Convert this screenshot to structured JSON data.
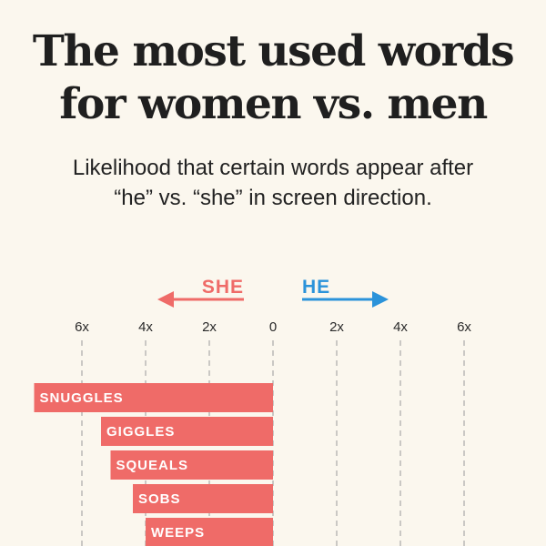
{
  "header": {
    "title_line1": "The most used words",
    "title_line2": "for women vs. men",
    "subtitle_line1": "Likelihood that certain words appear after",
    "subtitle_line2": "“he” vs. “she” in screen direction."
  },
  "colors": {
    "she": "#ef6b68",
    "he": "#2b93da",
    "grid": "#9a9a9a",
    "background": "#fbf7ee"
  },
  "chart_data": {
    "type": "bar",
    "orientation": "horizontal-diverging",
    "direction_labels": {
      "she": "SHE",
      "he": "HE"
    },
    "tick_values": [
      -6,
      -4,
      -2,
      0,
      2,
      4,
      6
    ],
    "tick_labels": [
      "6x",
      "4x",
      "2x",
      "0",
      "2x",
      "4x",
      "6x"
    ],
    "xlim": [
      -6,
      6
    ],
    "grid": true,
    "categories": [
      "SNUGGLES",
      "GIGGLES",
      "SQUEALS",
      "SOBS",
      "WEEPS"
    ],
    "series": [
      {
        "side": "she",
        "values": [
          7.5,
          5.4,
          5.1,
          4.4,
          4.0
        ]
      }
    ]
  }
}
